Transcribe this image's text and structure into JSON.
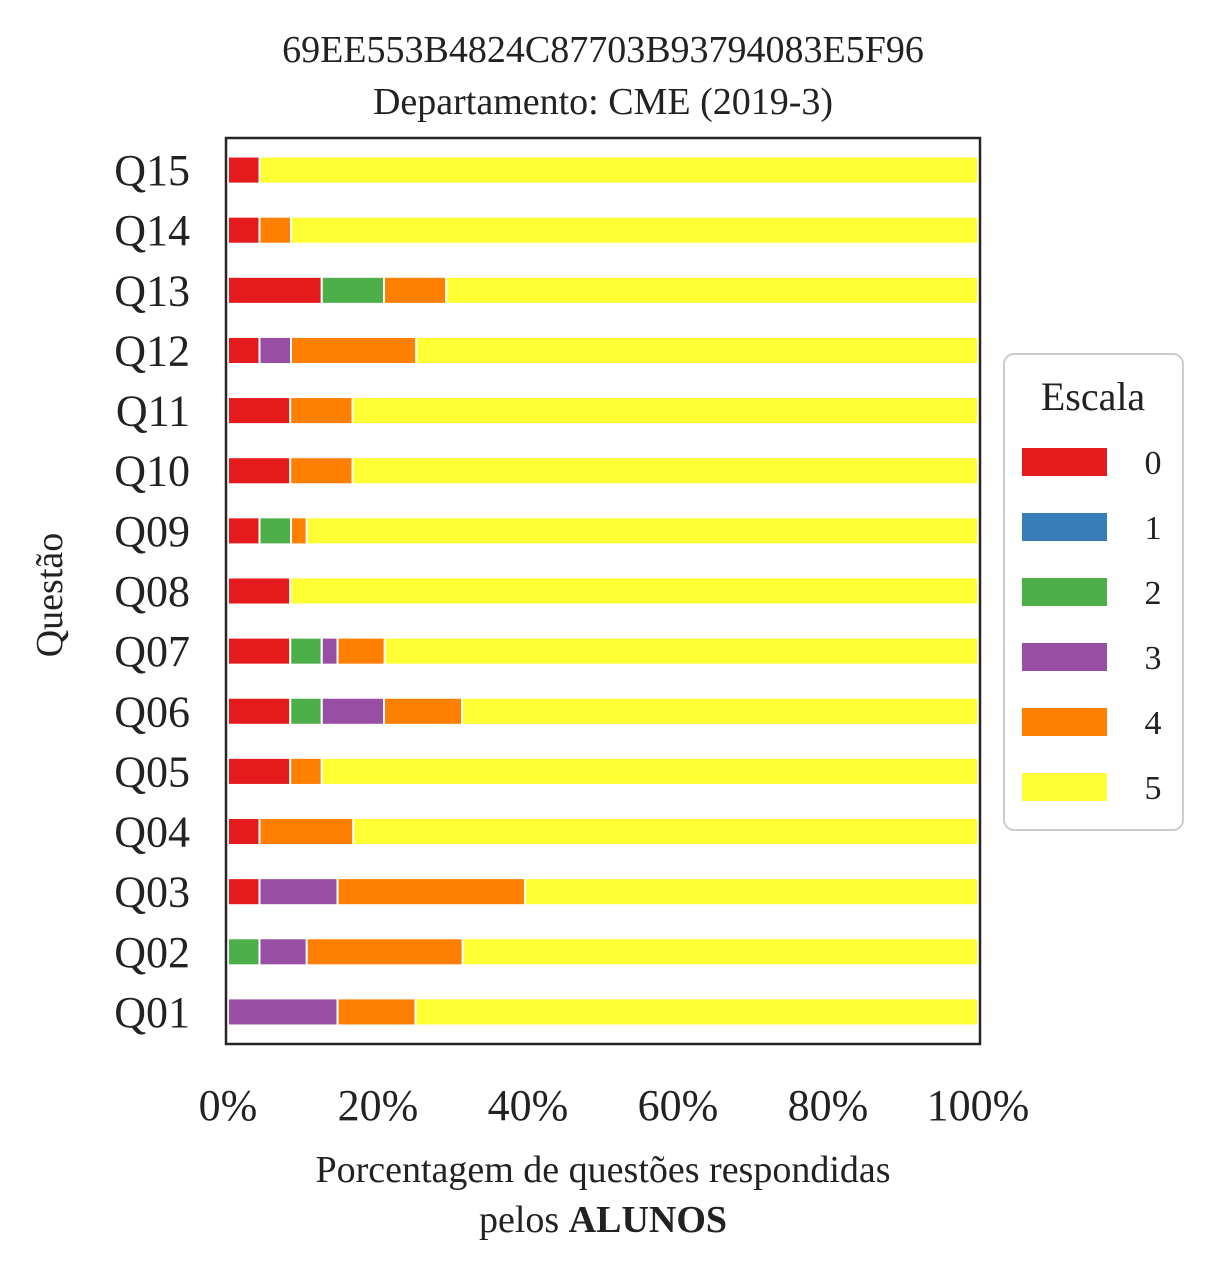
{
  "chart_data": {
    "type": "bar",
    "orientation": "horizontal",
    "stacked": true,
    "normalized": true,
    "title": "69EE553B4824C87703B93794083E5F96",
    "subtitle": "Departamento: CME (2019-3)",
    "xlabel": "Porcentagem de questões respondidas",
    "xlabel_line2_prefix": "pelos ",
    "xlabel_line2_bold": "ALUNOS",
    "ylabel": "Questão",
    "xlim": [
      0,
      100
    ],
    "xticks": [
      "0%",
      "20%",
      "40%",
      "60%",
      "80%",
      "100%"
    ],
    "grid": false,
    "legend_title": "Escala",
    "legend_position": "center-right",
    "categories": [
      "Q01",
      "Q02",
      "Q03",
      "Q04",
      "Q05",
      "Q06",
      "Q07",
      "Q08",
      "Q09",
      "Q10",
      "Q11",
      "Q12",
      "Q13",
      "Q14",
      "Q15"
    ],
    "series": [
      {
        "name": "0",
        "color": "#e41a1c",
        "values": [
          0,
          0,
          4.2,
          4.2,
          8.3,
          8.3,
          8.3,
          8.3,
          4.2,
          8.3,
          8.3,
          4.2,
          12.5,
          4.2,
          4.2
        ]
      },
      {
        "name": "1",
        "color": "#377eb8",
        "values": [
          0,
          0,
          0,
          0,
          0,
          0,
          0,
          0,
          0,
          0,
          0,
          0,
          0,
          0,
          0
        ]
      },
      {
        "name": "2",
        "color": "#4daf4a",
        "values": [
          0,
          4.2,
          0,
          0,
          0,
          4.2,
          4.2,
          0,
          4.2,
          0,
          0,
          0,
          8.3,
          0,
          0
        ]
      },
      {
        "name": "3",
        "color": "#984ea3",
        "values": [
          14.6,
          6.3,
          10.4,
          0,
          0,
          8.3,
          2.1,
          0,
          0,
          0,
          0,
          4.2,
          0,
          0,
          0
        ]
      },
      {
        "name": "4",
        "color": "#ff7f00",
        "values": [
          10.4,
          20.8,
          25.0,
          12.5,
          4.2,
          10.4,
          6.3,
          0,
          2.1,
          8.3,
          8.3,
          16.7,
          8.3,
          4.2,
          0
        ]
      },
      {
        "name": "5",
        "color": "#ffff33",
        "values": [
          75.0,
          68.7,
          60.4,
          83.3,
          87.5,
          68.8,
          79.1,
          91.7,
          89.5,
          83.4,
          83.4,
          74.9,
          70.9,
          91.6,
          95.8
        ]
      }
    ]
  }
}
